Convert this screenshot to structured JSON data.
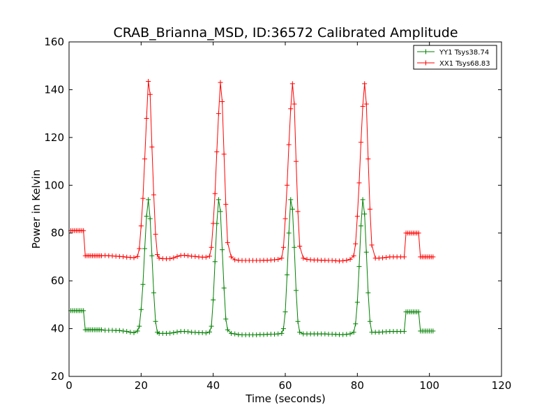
{
  "chart_data": {
    "type": "line",
    "title": "CRAB_Brianna_MSD, ID:36572 Calibrated Amplitude",
    "xlabel": "Time (seconds)",
    "ylabel": "Power in Kelvin",
    "xlim": [
      0,
      120
    ],
    "ylim": [
      20,
      160
    ],
    "xticks": [
      0,
      20,
      40,
      60,
      80,
      100,
      120
    ],
    "yticks": [
      20,
      40,
      60,
      80,
      100,
      120,
      140,
      160
    ],
    "grid": false,
    "legend_position": "top-right",
    "marker": "+",
    "series": [
      {
        "name": "YY1 Tsys38.74",
        "color": "#008000",
        "points": [
          [
            0.5,
            47.5
          ],
          [
            1.0,
            47.5
          ],
          [
            1.5,
            47.5
          ],
          [
            2.0,
            47.5
          ],
          [
            2.5,
            47.5
          ],
          [
            3.0,
            47.5
          ],
          [
            3.5,
            47.5
          ],
          [
            4.0,
            47.5
          ],
          [
            4.5,
            39.5
          ],
          [
            5.0,
            39.5
          ],
          [
            5.5,
            39.5
          ],
          [
            6.0,
            39.5
          ],
          [
            6.5,
            39.5
          ],
          [
            7.0,
            39.5
          ],
          [
            7.5,
            39.5
          ],
          [
            8.0,
            39.5
          ],
          [
            8.5,
            39.5
          ],
          [
            9.0,
            39.5
          ],
          [
            10,
            39.3
          ],
          [
            11,
            39.3
          ],
          [
            12,
            39.3
          ],
          [
            13,
            39.2
          ],
          [
            14,
            39.2
          ],
          [
            15,
            39.0
          ],
          [
            16,
            38.8
          ],
          [
            17,
            38.5
          ],
          [
            18,
            38.3
          ],
          [
            19,
            39.0
          ],
          [
            19.5,
            41.0
          ],
          [
            20.0,
            48.0
          ],
          [
            20.5,
            58.5
          ],
          [
            21.0,
            73.5
          ],
          [
            21.5,
            87.0
          ],
          [
            22.0,
            94.0
          ],
          [
            22.5,
            86.0
          ],
          [
            23.0,
            70.5
          ],
          [
            23.5,
            55.0
          ],
          [
            24.0,
            43.0
          ],
          [
            24.5,
            38.5
          ],
          [
            25,
            38.0
          ],
          [
            26,
            38.0
          ],
          [
            27,
            38.0
          ],
          [
            28,
            38.1
          ],
          [
            29,
            38.3
          ],
          [
            30,
            38.6
          ],
          [
            31,
            38.8
          ],
          [
            32,
            38.8
          ],
          [
            33,
            38.7
          ],
          [
            34,
            38.5
          ],
          [
            35,
            38.4
          ],
          [
            36,
            38.3
          ],
          [
            37,
            38.3
          ],
          [
            38,
            38.2
          ],
          [
            39,
            38.6
          ],
          [
            39.5,
            41.0
          ],
          [
            40.0,
            52.0
          ],
          [
            40.5,
            68.0
          ],
          [
            41.0,
            84.0
          ],
          [
            41.5,
            94.0
          ],
          [
            42.0,
            89.0
          ],
          [
            42.5,
            73.0
          ],
          [
            43.0,
            57.0
          ],
          [
            43.5,
            44.0
          ],
          [
            44.0,
            39.5
          ],
          [
            45,
            38.0
          ],
          [
            46,
            37.8
          ],
          [
            47,
            37.5
          ],
          [
            48,
            37.4
          ],
          [
            49,
            37.4
          ],
          [
            50,
            37.4
          ],
          [
            51,
            37.4
          ],
          [
            52,
            37.4
          ],
          [
            53,
            37.5
          ],
          [
            54,
            37.5
          ],
          [
            55,
            37.6
          ],
          [
            56,
            37.7
          ],
          [
            57,
            37.7
          ],
          [
            58,
            37.8
          ],
          [
            59,
            38.0
          ],
          [
            59.5,
            40.0
          ],
          [
            60.0,
            47.0
          ],
          [
            60.5,
            62.5
          ],
          [
            61.0,
            80.0
          ],
          [
            61.5,
            94.0
          ],
          [
            62.0,
            90.0
          ],
          [
            62.5,
            74.0
          ],
          [
            63.0,
            56.0
          ],
          [
            63.5,
            43.0
          ],
          [
            64.0,
            38.5
          ],
          [
            65,
            37.8
          ],
          [
            66,
            37.8
          ],
          [
            67,
            37.8
          ],
          [
            68,
            37.8
          ],
          [
            69,
            37.8
          ],
          [
            70,
            37.8
          ],
          [
            71,
            37.8
          ],
          [
            72,
            37.7
          ],
          [
            73,
            37.7
          ],
          [
            74,
            37.6
          ],
          [
            75,
            37.5
          ],
          [
            76,
            37.5
          ],
          [
            77,
            37.6
          ],
          [
            78,
            37.8
          ],
          [
            79,
            38.5
          ],
          [
            79.5,
            42.0
          ],
          [
            80.0,
            51.0
          ],
          [
            80.5,
            66.0
          ],
          [
            81.0,
            83.0
          ],
          [
            81.5,
            94.0
          ],
          [
            82.0,
            88.0
          ],
          [
            82.5,
            72.0
          ],
          [
            83.0,
            55.0
          ],
          [
            83.5,
            43.0
          ],
          [
            84.0,
            38.5
          ],
          [
            85,
            38.5
          ],
          [
            86,
            38.5
          ],
          [
            87,
            38.6
          ],
          [
            88,
            38.7
          ],
          [
            89,
            38.8
          ],
          [
            90,
            38.8
          ],
          [
            91,
            38.8
          ],
          [
            92,
            38.8
          ],
          [
            93,
            38.8
          ],
          [
            93.5,
            47.0
          ],
          [
            94.0,
            47.0
          ],
          [
            94.5,
            47.0
          ],
          [
            95.0,
            47.0
          ],
          [
            95.5,
            47.0
          ],
          [
            96.0,
            47.0
          ],
          [
            96.5,
            47.0
          ],
          [
            97.0,
            47.0
          ],
          [
            97.5,
            39.0
          ],
          [
            98.0,
            39.0
          ],
          [
            98.5,
            39.0
          ],
          [
            99.0,
            39.0
          ],
          [
            99.5,
            39.0
          ],
          [
            100.0,
            39.0
          ],
          [
            100.5,
            39.0
          ],
          [
            101.0,
            39.0
          ]
        ]
      },
      {
        "name": "XX1 Tsys68.83",
        "color": "#ff0000",
        "points": [
          [
            0.5,
            81.0
          ],
          [
            1.0,
            81.0
          ],
          [
            1.5,
            81.0
          ],
          [
            2.0,
            81.0
          ],
          [
            2.5,
            81.0
          ],
          [
            3.0,
            81.0
          ],
          [
            3.5,
            81.0
          ],
          [
            4.0,
            81.0
          ],
          [
            4.5,
            70.5
          ],
          [
            5.0,
            70.5
          ],
          [
            5.5,
            70.5
          ],
          [
            6.0,
            70.5
          ],
          [
            6.5,
            70.5
          ],
          [
            7.0,
            70.5
          ],
          [
            7.5,
            70.5
          ],
          [
            8.0,
            70.5
          ],
          [
            8.5,
            70.5
          ],
          [
            9.0,
            70.5
          ],
          [
            10,
            70.6
          ],
          [
            11,
            70.5
          ],
          [
            12,
            70.4
          ],
          [
            13,
            70.3
          ],
          [
            14,
            70.2
          ],
          [
            15,
            70.1
          ],
          [
            16,
            69.9
          ],
          [
            17,
            69.8
          ],
          [
            18,
            69.7
          ],
          [
            19,
            70.2
          ],
          [
            19.5,
            73.5
          ],
          [
            20.0,
            83.0
          ],
          [
            20.5,
            94.5
          ],
          [
            21.0,
            111.0
          ],
          [
            21.5,
            128.0
          ],
          [
            22.0,
            143.5
          ],
          [
            22.5,
            138.0
          ],
          [
            23.0,
            116.0
          ],
          [
            23.5,
            96.0
          ],
          [
            24.0,
            79.5
          ],
          [
            24.5,
            71.0
          ],
          [
            25,
            69.5
          ],
          [
            26,
            69.3
          ],
          [
            27,
            69.2
          ],
          [
            28,
            69.3
          ],
          [
            29,
            69.6
          ],
          [
            30,
            70.2
          ],
          [
            31,
            70.6
          ],
          [
            32,
            70.7
          ],
          [
            33,
            70.5
          ],
          [
            34,
            70.3
          ],
          [
            35,
            70.2
          ],
          [
            36,
            70.0
          ],
          [
            37,
            69.9
          ],
          [
            38,
            69.9
          ],
          [
            39,
            70.3
          ],
          [
            39.5,
            74.0
          ],
          [
            40.0,
            84.0
          ],
          [
            40.5,
            96.5
          ],
          [
            41.0,
            114.0
          ],
          [
            41.5,
            130.0
          ],
          [
            42.0,
            143.0
          ],
          [
            42.5,
            135.0
          ],
          [
            43.0,
            113.0
          ],
          [
            43.5,
            92.0
          ],
          [
            44.0,
            76.0
          ],
          [
            45,
            70.0
          ],
          [
            46,
            68.8
          ],
          [
            47,
            68.6
          ],
          [
            48,
            68.5
          ],
          [
            49,
            68.5
          ],
          [
            50,
            68.5
          ],
          [
            51,
            68.5
          ],
          [
            52,
            68.5
          ],
          [
            53,
            68.5
          ],
          [
            54,
            68.6
          ],
          [
            55,
            68.6
          ],
          [
            56,
            68.7
          ],
          [
            57,
            68.8
          ],
          [
            58,
            69.0
          ],
          [
            59,
            69.5
          ],
          [
            59.5,
            74.0
          ],
          [
            60.0,
            86.0
          ],
          [
            60.5,
            100.0
          ],
          [
            61.0,
            117.0
          ],
          [
            61.5,
            132.0
          ],
          [
            62.0,
            142.5
          ],
          [
            62.5,
            134.0
          ],
          [
            63.0,
            110.0
          ],
          [
            63.5,
            89.0
          ],
          [
            64.0,
            74.5
          ],
          [
            65,
            69.5
          ],
          [
            66,
            69.0
          ],
          [
            67,
            68.8
          ],
          [
            68,
            68.7
          ],
          [
            69,
            68.7
          ],
          [
            70,
            68.6
          ],
          [
            71,
            68.6
          ],
          [
            72,
            68.5
          ],
          [
            73,
            68.5
          ],
          [
            74,
            68.4
          ],
          [
            75,
            68.3
          ],
          [
            76,
            68.4
          ],
          [
            77,
            68.6
          ],
          [
            78,
            69.0
          ],
          [
            79,
            70.5
          ],
          [
            79.5,
            75.5
          ],
          [
            80.0,
            87.0
          ],
          [
            80.5,
            101.0
          ],
          [
            81.0,
            118.0
          ],
          [
            81.5,
            133.0
          ],
          [
            82.0,
            142.5
          ],
          [
            82.5,
            134.0
          ],
          [
            83.0,
            111.0
          ],
          [
            83.5,
            90.0
          ],
          [
            84.0,
            75.0
          ],
          [
            85,
            69.5
          ],
          [
            86,
            69.5
          ],
          [
            87,
            69.6
          ],
          [
            88,
            69.8
          ],
          [
            89,
            70.0
          ],
          [
            90,
            70.0
          ],
          [
            91,
            70.0
          ],
          [
            92,
            70.0
          ],
          [
            93,
            70.0
          ],
          [
            93.5,
            80.0
          ],
          [
            94.0,
            80.0
          ],
          [
            94.5,
            80.0
          ],
          [
            95.0,
            80.0
          ],
          [
            95.5,
            80.0
          ],
          [
            96.0,
            80.0
          ],
          [
            96.5,
            80.0
          ],
          [
            97.0,
            80.0
          ],
          [
            97.5,
            70.0
          ],
          [
            98.0,
            70.0
          ],
          [
            98.5,
            70.0
          ],
          [
            99.0,
            70.0
          ],
          [
            99.5,
            70.0
          ],
          [
            100.0,
            70.0
          ],
          [
            100.5,
            70.0
          ],
          [
            101.0,
            70.0
          ]
        ]
      }
    ]
  }
}
